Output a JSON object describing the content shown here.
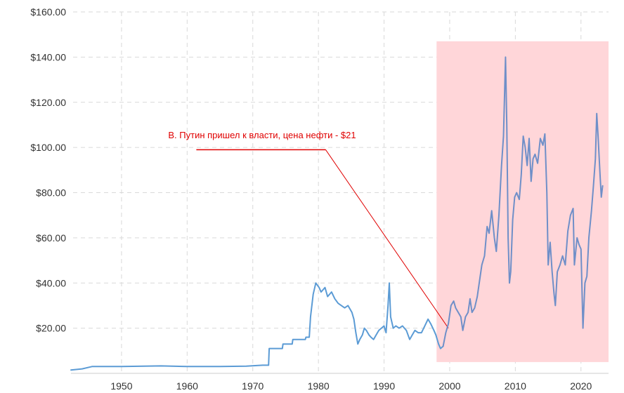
{
  "chart_data": {
    "type": "line",
    "title": "",
    "xlabel": "",
    "ylabel": "",
    "xlim": [
      1942.3,
      2024.2
    ],
    "ylim": [
      0,
      160
    ],
    "y_ticks": [
      20,
      40,
      60,
      80,
      100,
      120,
      140,
      160
    ],
    "y_tick_labels": [
      "$20.00",
      "$40.00",
      "$60.00",
      "$80.00",
      "$100.00",
      "$120.00",
      "$140.00",
      "$160.00"
    ],
    "x_ticks": [
      1950,
      1960,
      1970,
      1980,
      1990,
      2000,
      2010,
      2020
    ],
    "x_tick_labels": [
      "1950",
      "1960",
      "1970",
      "1980",
      "1990",
      "2000",
      "2010",
      "2020"
    ],
    "grid": true,
    "colors": {
      "line_pre": "#5b9bd5",
      "line_post": "#6f8fc8",
      "highlight": "#ffd6d9",
      "annotation": "#e00000"
    },
    "highlight_region": {
      "x_from": 1998.0,
      "x_to": 2024.2,
      "y_from": 5,
      "y_to": 147
    },
    "annotation": {
      "text": "В. Путин пришел к власти, цена нефти - $21",
      "leader_x_from": 1961.4,
      "leader_x_to": 1981.1,
      "leader_y": 99,
      "target": [
        1999.8,
        20
      ]
    },
    "series": [
      {
        "values": [
          [
            1942.3,
            1.5
          ],
          [
            1944.0,
            2.0
          ],
          [
            1945.5,
            3.0
          ],
          [
            1950.0,
            3.0
          ],
          [
            1956.0,
            3.3
          ],
          [
            1960.0,
            3.0
          ],
          [
            1965.0,
            3.0
          ],
          [
            1969.0,
            3.2
          ],
          [
            1971.5,
            3.6
          ],
          [
            1972.4,
            3.6
          ],
          [
            1972.5,
            11
          ],
          [
            1974.5,
            11
          ],
          [
            1974.6,
            13
          ],
          [
            1976.0,
            13
          ],
          [
            1976.1,
            15
          ],
          [
            1978.0,
            15
          ],
          [
            1978.1,
            16
          ],
          [
            1978.6,
            16
          ],
          [
            1978.8,
            25
          ],
          [
            1979.2,
            35
          ],
          [
            1979.6,
            40
          ],
          [
            1980.1,
            38
          ],
          [
            1980.4,
            36
          ],
          [
            1981.0,
            38
          ],
          [
            1981.4,
            34
          ],
          [
            1982.0,
            36
          ],
          [
            1982.5,
            33
          ],
          [
            1983.0,
            31
          ],
          [
            1983.5,
            30
          ],
          [
            1984.0,
            29
          ],
          [
            1984.5,
            30
          ],
          [
            1985.1,
            27
          ],
          [
            1985.4,
            24
          ],
          [
            1985.7,
            18
          ],
          [
            1986.0,
            13
          ],
          [
            1986.3,
            15
          ],
          [
            1986.7,
            17
          ],
          [
            1987.0,
            20
          ],
          [
            1987.3,
            19
          ],
          [
            1987.7,
            17
          ],
          [
            1988.0,
            16
          ],
          [
            1988.4,
            15
          ],
          [
            1988.8,
            17
          ],
          [
            1989.2,
            19
          ],
          [
            1989.6,
            20
          ],
          [
            1990.0,
            21
          ],
          [
            1990.3,
            18
          ],
          [
            1990.6,
            30
          ],
          [
            1990.8,
            40
          ],
          [
            1991.0,
            25
          ],
          [
            1991.4,
            20
          ],
          [
            1991.8,
            21
          ],
          [
            1992.3,
            20
          ],
          [
            1992.8,
            21
          ],
          [
            1993.4,
            19
          ],
          [
            1993.9,
            15
          ],
          [
            1994.3,
            17
          ],
          [
            1994.7,
            19
          ],
          [
            1995.2,
            18
          ],
          [
            1995.7,
            18
          ],
          [
            1996.2,
            21
          ],
          [
            1996.7,
            24
          ],
          [
            1997.1,
            22
          ],
          [
            1997.6,
            19
          ],
          [
            1997.9,
            17
          ],
          [
            1998.3,
            13
          ],
          [
            1998.6,
            11
          ],
          [
            1999.0,
            12
          ]
        ]
      },
      {
        "values": [
          [
            1999.0,
            12
          ],
          [
            1999.4,
            18
          ],
          [
            1999.8,
            22
          ],
          [
            2000.2,
            30
          ],
          [
            2000.6,
            32
          ],
          [
            2000.9,
            29
          ],
          [
            2001.3,
            27
          ],
          [
            2001.7,
            25
          ],
          [
            2002.0,
            19
          ],
          [
            2002.4,
            25
          ],
          [
            2002.8,
            27
          ],
          [
            2003.1,
            33
          ],
          [
            2003.4,
            27
          ],
          [
            2003.8,
            29
          ],
          [
            2004.2,
            34
          ],
          [
            2004.6,
            42
          ],
          [
            2004.9,
            48
          ],
          [
            2005.3,
            52
          ],
          [
            2005.7,
            65
          ],
          [
            2006.0,
            62
          ],
          [
            2006.4,
            72
          ],
          [
            2006.8,
            60
          ],
          [
            2007.1,
            54
          ],
          [
            2007.5,
            70
          ],
          [
            2007.9,
            92
          ],
          [
            2008.2,
            105
          ],
          [
            2008.5,
            140
          ],
          [
            2008.7,
            110
          ],
          [
            2008.9,
            60
          ],
          [
            2009.1,
            40
          ],
          [
            2009.3,
            45
          ],
          [
            2009.6,
            68
          ],
          [
            2009.9,
            78
          ],
          [
            2010.2,
            80
          ],
          [
            2010.6,
            77
          ],
          [
            2010.9,
            88
          ],
          [
            2011.2,
            105
          ],
          [
            2011.5,
            100
          ],
          [
            2011.8,
            92
          ],
          [
            2012.1,
            104
          ],
          [
            2012.4,
            85
          ],
          [
            2012.7,
            95
          ],
          [
            2013.0,
            97
          ],
          [
            2013.4,
            93
          ],
          [
            2013.8,
            104
          ],
          [
            2014.2,
            101
          ],
          [
            2014.5,
            106
          ],
          [
            2014.8,
            80
          ],
          [
            2015.0,
            48
          ],
          [
            2015.3,
            58
          ],
          [
            2015.6,
            45
          ],
          [
            2015.9,
            35
          ],
          [
            2016.1,
            30
          ],
          [
            2016.4,
            45
          ],
          [
            2016.8,
            48
          ],
          [
            2017.2,
            52
          ],
          [
            2017.6,
            48
          ],
          [
            2018.0,
            63
          ],
          [
            2018.4,
            70
          ],
          [
            2018.8,
            73
          ],
          [
            2019.0,
            48
          ],
          [
            2019.4,
            60
          ],
          [
            2019.7,
            57
          ],
          [
            2020.0,
            55
          ],
          [
            2020.3,
            20
          ],
          [
            2020.6,
            40
          ],
          [
            2020.9,
            43
          ],
          [
            2021.2,
            60
          ],
          [
            2021.6,
            72
          ],
          [
            2021.9,
            83
          ],
          [
            2022.2,
            95
          ],
          [
            2022.4,
            115
          ],
          [
            2022.6,
            105
          ],
          [
            2022.9,
            88
          ],
          [
            2023.1,
            78
          ],
          [
            2023.3,
            83
          ]
        ]
      }
    ]
  }
}
